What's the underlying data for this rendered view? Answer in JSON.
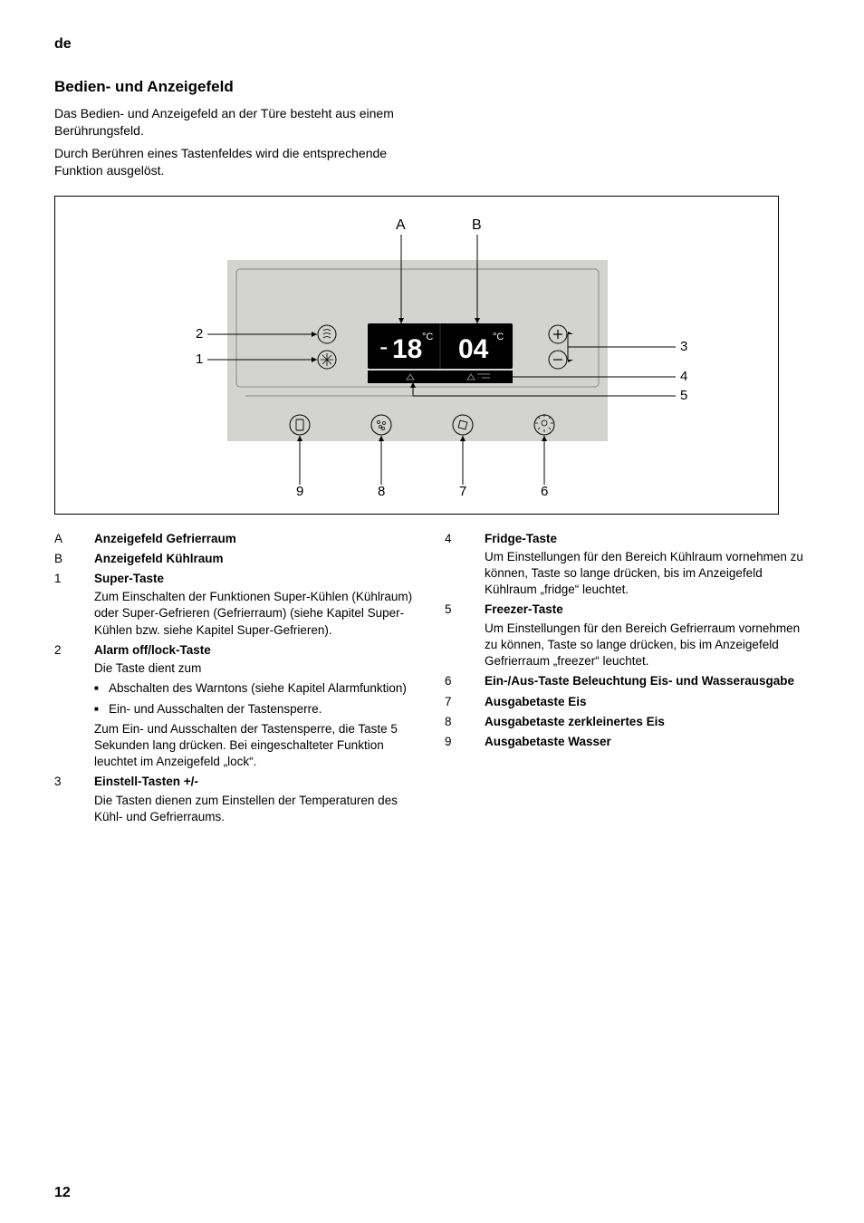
{
  "lang": "de",
  "title": "Bedien- und Anzeigefeld",
  "intro1": "Das Bedien- und Anzeigefeld an der Türe besteht aus einem Berührungsfeld.",
  "intro2": "Durch Berühren eines Tastenfeldes wird die entsprechende Funktion ausgelöst.",
  "page_number": "12",
  "diagram": {
    "box_border": "#000000",
    "panel_bg": "#d3d3cf",
    "display_bg": "#000000",
    "display_fg": "#ffffff",
    "callout_color": "#000000",
    "button_stroke": "#000000",
    "button_fill": "none",
    "font_family": "Arial",
    "labels": {
      "A": "A",
      "B": "B",
      "n1": "1",
      "n2": "2",
      "n3": "3",
      "n4": "4",
      "n5": "5",
      "n6": "6",
      "n7": "7",
      "n8": "8",
      "n9": "9"
    },
    "freezer_temp": "18",
    "fridge_temp": "04",
    "unit": "°C"
  },
  "left_items": [
    {
      "key": "A",
      "title": "Anzeigefeld Gefrierraum"
    },
    {
      "key": "B",
      "title": "Anzeigefeld Kühlraum"
    },
    {
      "key": "1",
      "title": "Super-Taste",
      "text": "Zum Einschalten der Funktionen Super-Kühlen (Kühlraum) oder Super-Gefrieren (Gefrierraum) (siehe Kapitel Super-Kühlen bzw. siehe Kapitel Super-Gefrieren)."
    },
    {
      "key": "2",
      "title": "Alarm off/lock-Taste",
      "text": "Die Taste dient zum",
      "bullets": [
        "Abschalten des Warntons (siehe Kapitel Alarmfunktion)",
        "Ein- und Ausschalten der Tastensperre."
      ],
      "after": "Zum Ein- und Ausschalten der Tastensperre, die Taste 5 Sekunden lang drücken. Bei eingeschalteter Funktion leuchtet im Anzeigefeld „lock“."
    },
    {
      "key": "3",
      "title": "Einstell-Tasten +/-",
      "text": "Die Tasten dienen zum Einstellen der Temperaturen des Kühl- und Gefrierraums."
    }
  ],
  "right_items": [
    {
      "key": "4",
      "title": "Fridge-Taste",
      "text": "Um Einstellungen für den Bereich Kühlraum vornehmen zu können, Taste so lange drücken, bis im Anzeigefeld Kühlraum „fridge“ leuchtet."
    },
    {
      "key": "5",
      "title": "Freezer-Taste",
      "text": "Um Einstellungen für den Bereich Gefrierraum vornehmen zu können, Taste so lange drücken, bis im Anzeigefeld Gefrierraum „freezer“ leuchtet."
    },
    {
      "key": "6",
      "title": "Ein-/Aus-Taste Beleuchtung Eis- und Wasserausgabe"
    },
    {
      "key": "7",
      "title": "Ausgabetaste Eis"
    },
    {
      "key": "8",
      "title": "Ausgabetaste zerkleinertes Eis"
    },
    {
      "key": "9",
      "title": "Ausgabetaste Wasser"
    }
  ]
}
